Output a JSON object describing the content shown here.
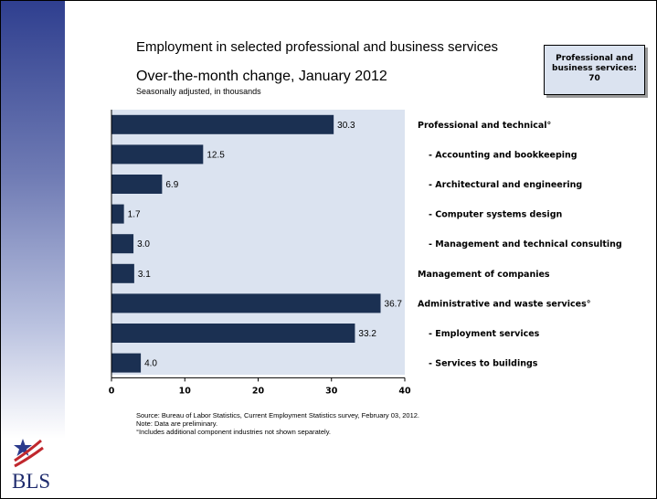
{
  "title": "Employment in selected professional and business services",
  "subtitle": "Over-the-month change, January 2012",
  "note": "Seasonally adjusted, in thousands",
  "callout": {
    "line1": "Professional and",
    "line2": "business services:",
    "line3": "70"
  },
  "source": {
    "line1": "Source: Bureau of Labor Statistics, Current Employment Statistics survey, February 03, 2012.",
    "line2": "Note: Data are preliminary.",
    "line3": "°Includes additional component industries not shown separately."
  },
  "logo_text": "BLS",
  "colors": {
    "bar": "#1b3052",
    "plot_background": "#dbe3f0",
    "band_top": "#2f3f8f"
  },
  "chart_data": {
    "type": "bar",
    "orientation": "horizontal",
    "categories": [
      "Professional and technical°",
      "- Accounting and bookkeeping",
      "- Architectural and engineering",
      "- Computer systems design",
      "- Management and technical consulting",
      "Management of companies",
      "Administrative and waste services°",
      "- Employment services",
      "- Services to buildings"
    ],
    "values": [
      30.3,
      12.5,
      6.9,
      1.7,
      3.0,
      3.1,
      36.7,
      33.2,
      4.0
    ],
    "value_labels": [
      "30.3",
      "12.5",
      "6.9",
      "1.7",
      "3.0",
      "3.1",
      "36.7",
      "33.2",
      "4.0"
    ],
    "xlim": [
      0,
      40
    ],
    "xticks": [
      "0",
      "10",
      "20",
      "30",
      "40"
    ],
    "grid": false,
    "legend": "none"
  }
}
